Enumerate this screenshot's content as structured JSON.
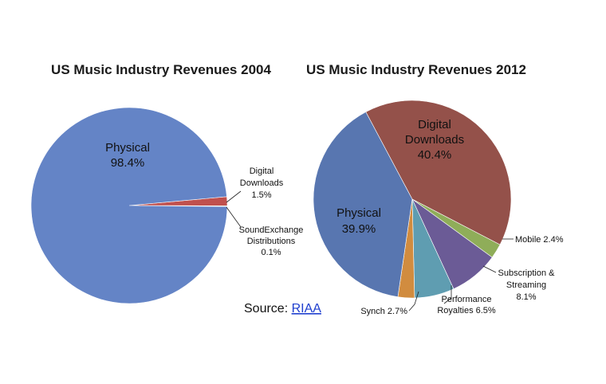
{
  "chart_data": [
    {
      "type": "pie",
      "title": "US Music Industry Revenues 2004",
      "slices": [
        {
          "label": "Physical",
          "value_label": "98.4%",
          "value": 98.4,
          "color": "#6484c6"
        },
        {
          "label": "Digital Downloads",
          "value_label": "1.5%",
          "value": 1.5,
          "color": "#c0504d"
        },
        {
          "label": "SoundExchange Distributions",
          "value_label": "0.1%",
          "value": 0.1,
          "color": "#9bbb59"
        }
      ]
    },
    {
      "type": "pie",
      "title": "US Music Industry Revenues 2012",
      "slices": [
        {
          "label": "Digital Downloads",
          "value_label": "40.4%",
          "value": 40.4,
          "color": "#94514a"
        },
        {
          "label": "Mobile",
          "value_label": "2.4%",
          "value": 2.4,
          "color": "#8fad59"
        },
        {
          "label": "Subscription & Streaming",
          "value_label": "8.1%",
          "value": 8.1,
          "color": "#6b5b96"
        },
        {
          "label": "Performance Royalties",
          "value_label": "6.5%",
          "value": 6.5,
          "color": "#5f9db1"
        },
        {
          "label": "Synch",
          "value_label": "2.7%",
          "value": 2.7,
          "color": "#d18c3f"
        },
        {
          "label": "Physical",
          "value_label": "39.9%",
          "value": 39.9,
          "color": "#5876b0"
        }
      ]
    }
  ],
  "source": {
    "prefix": "Source: ",
    "link_text": "RIAA"
  }
}
